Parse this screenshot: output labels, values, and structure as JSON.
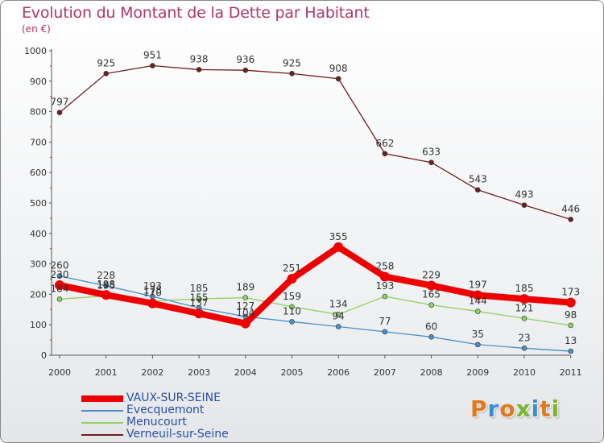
{
  "title": "Evolution du Montant de la Dette par Habitant",
  "subtitle": "(en €)",
  "logo": {
    "text": "Proxiti",
    "colors": [
      "#e07a1f",
      "#3a8fd0",
      "#e07a1f",
      "#7ab52a",
      "#3a8fd0",
      "#e07a1f",
      "#7ab52a"
    ]
  },
  "chart_data": {
    "type": "line",
    "x": [
      "2000",
      "2001",
      "2002",
      "2003",
      "2004",
      "2005",
      "2006",
      "2007",
      "2008",
      "2009",
      "2010",
      "2011"
    ],
    "ylim": [
      0,
      1000
    ],
    "yticks": [
      0,
      100,
      200,
      300,
      400,
      500,
      600,
      700,
      800,
      900,
      1000
    ],
    "grid": false,
    "legend_position": "bottom-left",
    "series": [
      {
        "name": "VAUX-SUR-SEINE",
        "color": "#ee0000",
        "values": [
          230,
          198,
          170,
          137,
          104,
          251,
          355,
          258,
          229,
          197,
          185,
          173
        ]
      },
      {
        "name": "Evecquemont",
        "color": "#4a90c8",
        "values": [
          260,
          228,
          193,
          155,
          127,
          110,
          94,
          77,
          60,
          35,
          23,
          13
        ]
      },
      {
        "name": "Menucourt",
        "color": "#90d060",
        "values": [
          184,
          195,
          178,
          185,
          189,
          159,
          134,
          193,
          165,
          144,
          121,
          98
        ]
      },
      {
        "name": "Verneuil-sur-Seine",
        "color": "#6e1f1f",
        "values": [
          797,
          925,
          951,
          938,
          936,
          925,
          908,
          662,
          633,
          543,
          493,
          446
        ]
      }
    ]
  }
}
